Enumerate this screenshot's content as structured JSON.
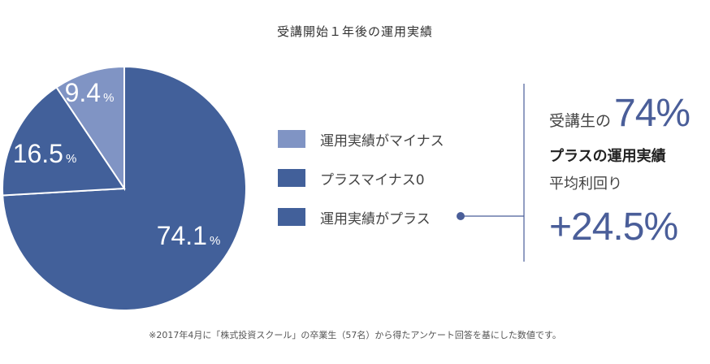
{
  "chart_data": {
    "type": "pie",
    "title": "受講開始１年後の運用実績",
    "slices": [
      {
        "label": "運用実績がプラス",
        "value": 74.1,
        "display": "74.1",
        "color": "#42609a"
      },
      {
        "label": "プラスマイナス0",
        "value": 16.5,
        "display": "16.5",
        "color": "#42609a"
      },
      {
        "label": "運用実績がマイナス",
        "value": 9.4,
        "display": "9.4",
        "color": "#8094c4"
      }
    ],
    "unit": "%",
    "legend": [
      {
        "label": "運用実績がマイナス",
        "color": "#8094c4"
      },
      {
        "label": "プラスマイナス0",
        "color": "#42609a"
      },
      {
        "label": "運用実績がプラス",
        "color": "#42609a"
      }
    ],
    "legend_position": "right"
  },
  "callout": {
    "prefix": "受講生の",
    "big": "74%",
    "bold": "プラスの運用実績",
    "sub": "平均利回り",
    "value": "+24.5%"
  },
  "footnote": "※2017年4月に「株式投資スクール」の卒業生（57名）から得たアンケート回答を基にした数値です。"
}
